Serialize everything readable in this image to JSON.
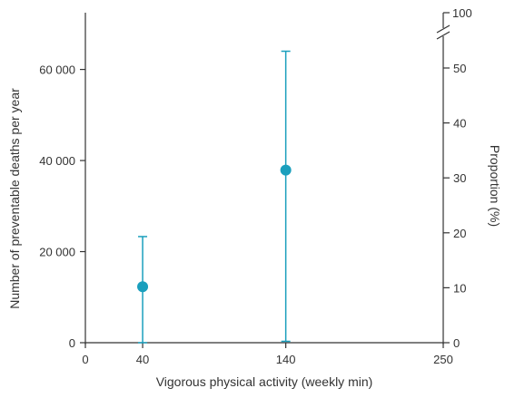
{
  "chart_data": {
    "type": "scatter",
    "xlabel": "Vigorous physical activity (weekly min)",
    "ylabel": "Number of preventable deaths per year",
    "y2label": "Proportion (%)",
    "xlim": [
      0,
      250
    ],
    "ylim": [
      0,
      74000
    ],
    "y2lim": [
      0,
      60
    ],
    "x_ticks": [
      0,
      40,
      140,
      250
    ],
    "x_tick_labels": [
      "0",
      "40",
      "140",
      "250"
    ],
    "y_ticks": [
      0,
      20000,
      40000,
      60000
    ],
    "y_tick_labels": [
      "0",
      "20 000",
      "40 000",
      "60 000"
    ],
    "y2_ticks": [
      0,
      10,
      20,
      30,
      40,
      50
    ],
    "y2_tick_labels": [
      "0",
      "10",
      "20",
      "30",
      "40",
      "50"
    ],
    "y2_break_label": "100",
    "grid": false,
    "points": [
      {
        "x": 40,
        "y": 12300,
        "y_low": 0,
        "y_high": 23300
      },
      {
        "x": 140,
        "y": 37900,
        "y_low": 300,
        "y_high": 64000
      }
    ],
    "colors": {
      "series": "#1a9fbd",
      "axis": "#333333"
    }
  }
}
